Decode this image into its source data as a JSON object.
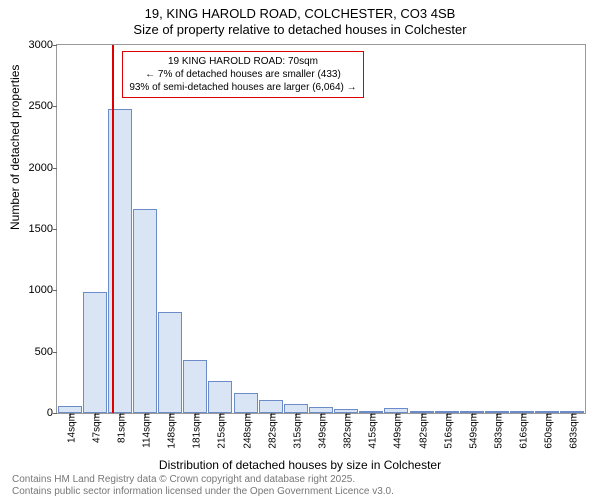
{
  "title_main": "19, KING HAROLD ROAD, COLCHESTER, CO3 4SB",
  "title_sub": "Size of property relative to detached houses in Colchester",
  "ylabel": "Number of detached properties",
  "xlabel": "Distribution of detached houses by size in Colchester",
  "footer_line1": "Contains HM Land Registry data © Crown copyright and database right 2025.",
  "footer_line2": "Contains public sector information licensed under the Open Government Licence v3.0.",
  "annotation": {
    "line1": "19 KING HAROLD ROAD: 70sqm",
    "line2": "← 7% of detached houses are smaller (433)",
    "line3": "93% of semi-detached houses are larger (6,064) →"
  },
  "chart": {
    "type": "histogram",
    "ylim": [
      0,
      3000
    ],
    "ytick_step": 500,
    "yticks": [
      0,
      500,
      1000,
      1500,
      2000,
      2500,
      3000
    ],
    "xticks": [
      "14sqm",
      "47sqm",
      "81sqm",
      "114sqm",
      "148sqm",
      "181sqm",
      "215sqm",
      "248sqm",
      "282sqm",
      "315sqm",
      "349sqm",
      "382sqm",
      "415sqm",
      "449sqm",
      "482sqm",
      "516sqm",
      "549sqm",
      "583sqm",
      "616sqm",
      "650sqm",
      "683sqm"
    ],
    "values": [
      60,
      990,
      2480,
      1660,
      820,
      430,
      260,
      160,
      110,
      70,
      50,
      30,
      15,
      40,
      10,
      5,
      5,
      5,
      0,
      0,
      5
    ],
    "bar_fill": "#d9e4f5",
    "bar_stroke": "#6c8cc9",
    "background_color": "#ffffff",
    "border_color": "#999999",
    "marker_color": "#dd0000",
    "marker_x_index": 1.7,
    "text_color": "#000000",
    "footer_color": "#777777",
    "bar_width_ratio": 0.95
  }
}
